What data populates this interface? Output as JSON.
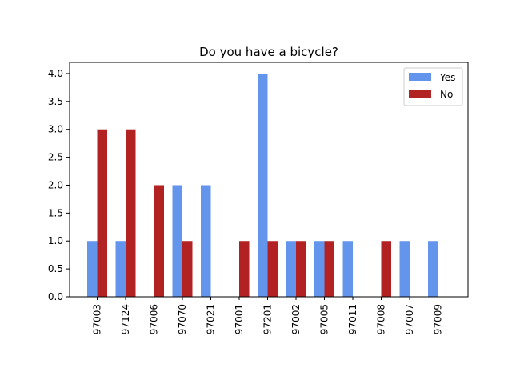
{
  "chart_data": {
    "type": "bar",
    "title": "Do you have a bicycle?",
    "xlabel": "",
    "ylabel": "",
    "categories": [
      "97003",
      "97124",
      "97006",
      "97070",
      "97021",
      "97001",
      "97201",
      "97002",
      "97005",
      "97011",
      "97008",
      "97007",
      "97009"
    ],
    "series": [
      {
        "name": "Yes",
        "color": "#6495ED",
        "values": [
          1,
          1,
          0,
          2,
          2,
          0,
          4,
          1,
          1,
          1,
          0,
          1,
          1
        ]
      },
      {
        "name": "No",
        "color": "#B22222",
        "values": [
          3,
          3,
          2,
          1,
          0,
          1,
          1,
          1,
          1,
          0,
          1,
          0,
          0
        ]
      }
    ],
    "ylim": [
      0,
      4.2
    ],
    "yticks": [
      "0.0",
      "0.5",
      "1.0",
      "1.5",
      "2.0",
      "2.5",
      "3.0",
      "3.5",
      "4.0"
    ],
    "grid": false,
    "legend_position": "top-right"
  }
}
